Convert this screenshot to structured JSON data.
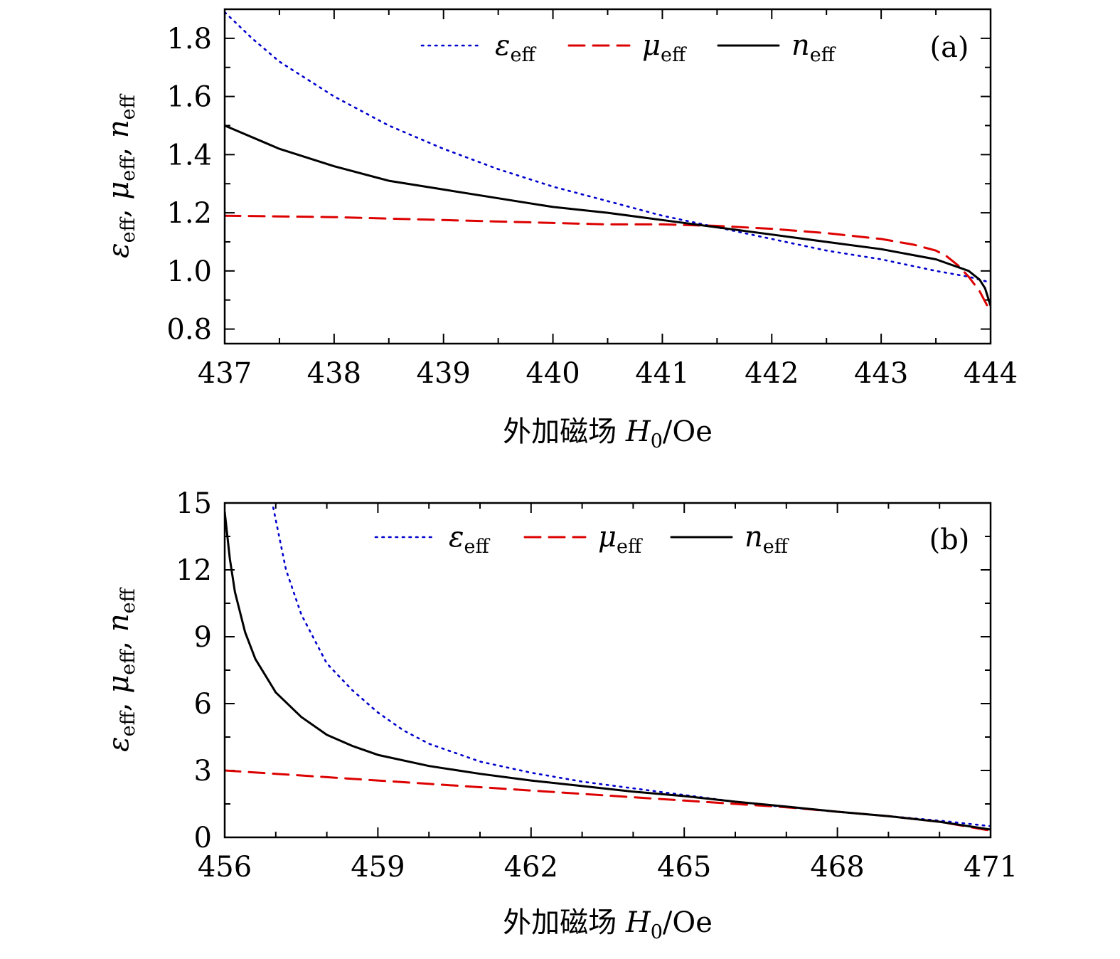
{
  "chart_data": [
    {
      "type": "line",
      "panel_label": "(a)",
      "xlabel_text": "外加磁场 ",
      "xlabel_symbol": "H",
      "xlabel_symbol_sub": "0",
      "xlabel_unit": "/Oe",
      "ylabel": {
        "s1": "ε",
        "s1sub": "eff",
        "sep1": ", ",
        "s2": "μ",
        "s2sub": "eff",
        "sep2": ", ",
        "s3": "n",
        "s3sub": "eff"
      },
      "xlim": [
        437,
        444
      ],
      "ylim": [
        0.75,
        1.9
      ],
      "xticks": [
        437,
        438,
        439,
        440,
        441,
        442,
        443,
        444
      ],
      "yticks": [
        0.8,
        1.0,
        1.2,
        1.4,
        1.6,
        1.8
      ],
      "ytick_labels": [
        "0.8",
        "1.0",
        "1.2",
        "1.4",
        "1.6",
        "1.8"
      ],
      "legend_position": "top",
      "series": [
        {
          "name": "ε",
          "sub": "eff",
          "color": "#0000cc",
          "style": "dotted",
          "x": [
            437,
            437.25,
            437.5,
            438,
            438.5,
            439,
            439.5,
            440,
            440.5,
            441,
            441.5,
            442,
            442.5,
            443,
            443.5,
            443.8,
            444
          ],
          "y": [
            1.89,
            1.8,
            1.72,
            1.6,
            1.5,
            1.42,
            1.35,
            1.29,
            1.24,
            1.19,
            1.15,
            1.11,
            1.07,
            1.04,
            1.0,
            0.98,
            0.96
          ]
        },
        {
          "name": "μ",
          "sub": "eff",
          "color": "#dd0000",
          "style": "dashed",
          "x": [
            437,
            438,
            439,
            440,
            440.5,
            441,
            441.5,
            442,
            442.5,
            443,
            443.3,
            443.5,
            443.6,
            443.7,
            443.8,
            443.9,
            443.97
          ],
          "y": [
            1.19,
            1.185,
            1.175,
            1.165,
            1.16,
            1.16,
            1.155,
            1.145,
            1.13,
            1.11,
            1.09,
            1.07,
            1.05,
            1.02,
            0.98,
            0.93,
            0.88
          ]
        },
        {
          "name": "n",
          "sub": "eff",
          "color": "#000000",
          "style": "solid",
          "x": [
            437,
            437.5,
            438,
            438.5,
            439,
            439.5,
            440,
            440.5,
            441,
            441.5,
            442,
            442.5,
            443,
            443.5,
            443.8,
            443.9,
            443.95,
            444
          ],
          "y": [
            1.5,
            1.42,
            1.36,
            1.31,
            1.28,
            1.25,
            1.22,
            1.2,
            1.175,
            1.15,
            1.125,
            1.1,
            1.075,
            1.04,
            1.0,
            0.97,
            0.94,
            0.88
          ]
        }
      ]
    },
    {
      "type": "line",
      "panel_label": "(b)",
      "xlabel_text": "外加磁场 ",
      "xlabel_symbol": "H",
      "xlabel_symbol_sub": "0",
      "xlabel_unit": "/Oe",
      "ylabel": {
        "s1": "ε",
        "s1sub": "eff",
        "sep1": ", ",
        "s2": "μ",
        "s2sub": "eff",
        "sep2": ", ",
        "s3": "n",
        "s3sub": "eff"
      },
      "xlim": [
        456,
        471
      ],
      "ylim": [
        0,
        15
      ],
      "xticks": [
        456,
        459,
        462,
        465,
        468,
        471
      ],
      "yticks": [
        0,
        3,
        6,
        9,
        12,
        15
      ],
      "ytick_labels": [
        "0",
        "3",
        "6",
        "9",
        "12",
        "15"
      ],
      "legend_position": "top",
      "series": [
        {
          "name": "ε",
          "sub": "eff",
          "color": "#0000cc",
          "style": "dotted",
          "x": [
            456.95,
            457.2,
            457.5,
            458,
            458.5,
            459,
            459.5,
            460,
            461,
            462,
            463,
            464,
            465,
            466,
            467,
            468,
            469,
            470,
            471
          ],
          "y": [
            14.8,
            12,
            10,
            7.8,
            6.6,
            5.6,
            4.8,
            4.2,
            3.4,
            2.9,
            2.5,
            2.2,
            1.9,
            1.6,
            1.35,
            1.15,
            0.95,
            0.75,
            0.5
          ]
        },
        {
          "name": "μ",
          "sub": "eff",
          "color": "#dd0000",
          "style": "dashed",
          "x": [
            456,
            457,
            458,
            459,
            460,
            461,
            462,
            463,
            464,
            465,
            466,
            467,
            468,
            469,
            470,
            471
          ],
          "y": [
            3.0,
            2.85,
            2.7,
            2.55,
            2.4,
            2.25,
            2.1,
            1.95,
            1.8,
            1.65,
            1.5,
            1.35,
            1.15,
            0.95,
            0.7,
            0.3
          ]
        },
        {
          "name": "n",
          "sub": "eff",
          "color": "#000000",
          "style": "solid",
          "x": [
            456,
            456.1,
            456.2,
            456.4,
            456.6,
            457,
            457.5,
            458,
            458.5,
            459,
            460,
            461,
            462,
            463,
            464,
            465,
            466,
            467,
            468,
            469,
            470,
            471
          ],
          "y": [
            14.6,
            12.5,
            11,
            9.2,
            8,
            6.5,
            5.4,
            4.6,
            4.1,
            3.7,
            3.2,
            2.85,
            2.55,
            2.3,
            2.05,
            1.85,
            1.6,
            1.38,
            1.15,
            0.95,
            0.7,
            0.35
          ]
        }
      ]
    }
  ]
}
